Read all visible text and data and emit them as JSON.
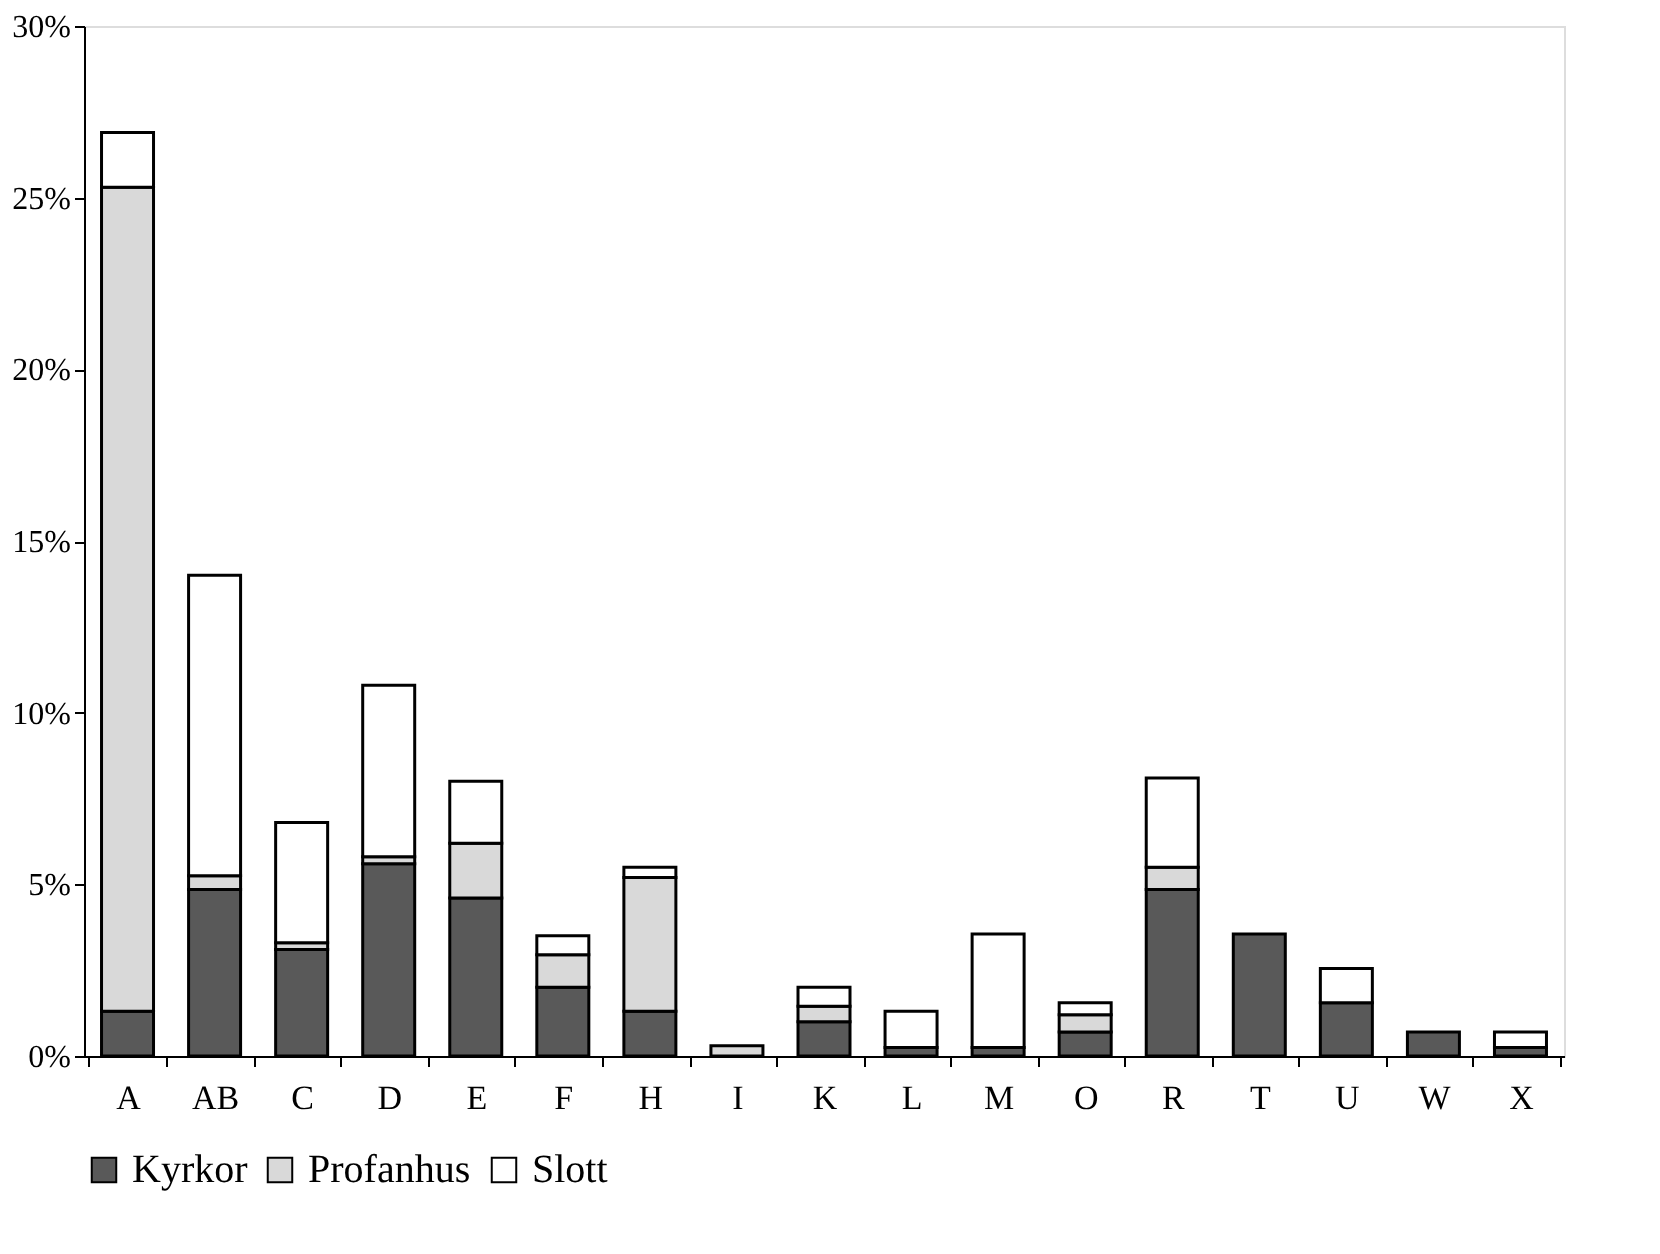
{
  "chart_data": {
    "type": "bar",
    "stacked": true,
    "categories": [
      "A",
      "AB",
      "C",
      "D",
      "E",
      "F",
      "H",
      "I",
      "K",
      "L",
      "M",
      "O",
      "R",
      "T",
      "U",
      "W",
      "X"
    ],
    "series": [
      {
        "name": "Kyrkor",
        "color": "#595959",
        "values": [
          1.3,
          4.85,
          3.1,
          5.6,
          4.6,
          2.0,
          1.3,
          null,
          1.0,
          0.25,
          0.25,
          0.7,
          4.85,
          3.55,
          1.55,
          0.7,
          0.25
        ]
      },
      {
        "name": "Profanhus",
        "color": "#d9d9d9",
        "values": [
          24.0,
          0.4,
          0.2,
          0.2,
          1.6,
          0.95,
          3.9,
          0.3,
          0.45,
          null,
          null,
          0.5,
          0.65,
          null,
          null,
          null,
          null
        ]
      },
      {
        "name": "Slott",
        "color": "#ffffff",
        "values": [
          1.6,
          8.75,
          3.5,
          5.0,
          1.8,
          0.55,
          0.3,
          null,
          0.55,
          1.05,
          3.3,
          0.35,
          2.6,
          null,
          1.0,
          null,
          0.45
        ]
      }
    ],
    "ylim": [
      0,
      30
    ],
    "yticks": [
      {
        "value": 0,
        "label": "0%"
      },
      {
        "value": 5,
        "label": "5%"
      },
      {
        "value": 10,
        "label": "10%"
      },
      {
        "value": 15,
        "label": "15%"
      },
      {
        "value": 20,
        "label": "20%"
      },
      {
        "value": 25,
        "label": "25%"
      },
      {
        "value": 30,
        "label": "30%"
      }
    ],
    "grid": false,
    "legend": "bottom"
  }
}
